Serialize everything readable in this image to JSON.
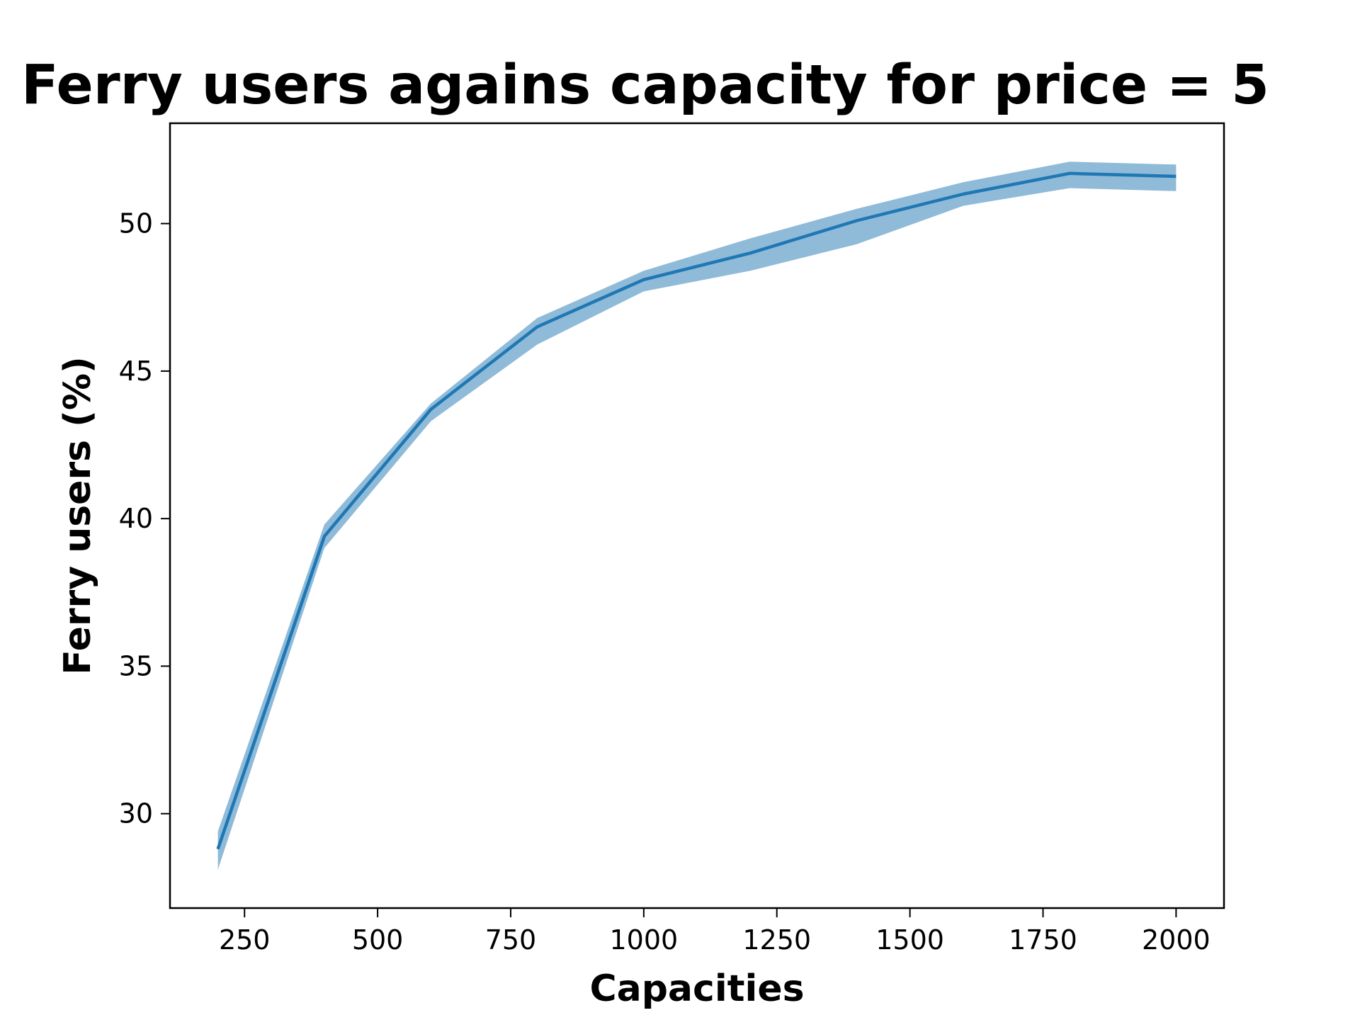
{
  "chart_data": {
    "type": "line",
    "title": "Ferry users agains capacity for price = 5",
    "xlabel": "Capacities",
    "ylabel": "Ferry users (%)",
    "xlim": [
      110,
      2090
    ],
    "ylim": [
      26.8,
      53.4
    ],
    "x_ticks": [
      250,
      500,
      750,
      1000,
      1250,
      1500,
      1750,
      2000
    ],
    "y_ticks": [
      30,
      35,
      40,
      45,
      50
    ],
    "grid": false,
    "series": [
      {
        "x": [
          200,
          400,
          600,
          800,
          1000,
          1200,
          1400,
          1600,
          1800,
          2000
        ],
        "y": [
          28.8,
          39.4,
          43.7,
          46.5,
          48.1,
          49.0,
          50.1,
          51.0,
          51.7,
          51.6
        ],
        "y_lower": [
          28.1,
          39.0,
          43.3,
          45.9,
          47.7,
          48.4,
          49.3,
          50.6,
          51.2,
          51.1
        ],
        "y_upper": [
          29.4,
          39.8,
          43.9,
          46.8,
          48.4,
          49.5,
          50.5,
          51.4,
          52.1,
          52.0
        ],
        "color": "#1f77b4"
      }
    ]
  }
}
